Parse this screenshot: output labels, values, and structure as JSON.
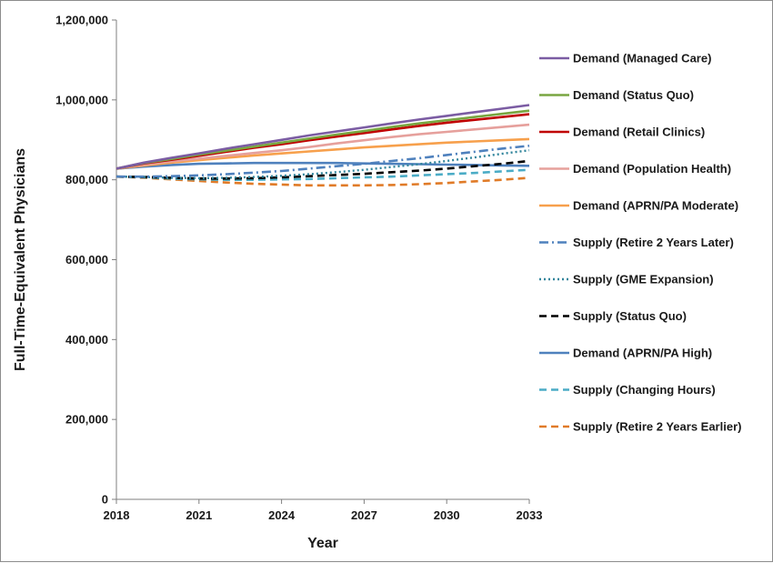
{
  "chart_data": {
    "type": "line",
    "title": "",
    "xlabel": "Year",
    "ylabel": "Full-Time-Equivalent Physicians",
    "xlim": [
      2018,
      2033
    ],
    "ylim": [
      0,
      1200000
    ],
    "x_ticks": [
      2018,
      2021,
      2024,
      2027,
      2030,
      2033
    ],
    "x_tick_labels": [
      "2018",
      "2021",
      "2024",
      "2027",
      "2030",
      "2033"
    ],
    "y_ticks": [
      0,
      200000,
      400000,
      600000,
      800000,
      1000000,
      1200000
    ],
    "y_tick_labels": [
      "0",
      "200,000",
      "400,000",
      "600,000",
      "800,000",
      "1,000,000",
      "1,200,000"
    ],
    "grid": false,
    "legend_position": "right",
    "x": [
      2018,
      2019,
      2020,
      2021,
      2022,
      2023,
      2024,
      2025,
      2026,
      2027,
      2028,
      2029,
      2030,
      2031,
      2032,
      2033
    ],
    "series": [
      {
        "name": "Demand (Managed Care)",
        "color": "#7b5ca3",
        "dash": "solid",
        "values": [
          828000,
          843000,
          855000,
          866000,
          878000,
          889000,
          900000,
          911000,
          921000,
          931000,
          941000,
          951000,
          960000,
          969000,
          978000,
          987000
        ]
      },
      {
        "name": "Demand (Status Quo)",
        "color": "#78a640",
        "dash": "solid",
        "values": [
          828000,
          842000,
          852000,
          863000,
          873000,
          883000,
          893000,
          903000,
          913000,
          922000,
          932000,
          941000,
          949000,
          957000,
          965000,
          973000
        ]
      },
      {
        "name": "Demand (Retail Clinics)",
        "color": "#c00000",
        "dash": "solid",
        "values": [
          828000,
          841000,
          850000,
          860000,
          870000,
          880000,
          889000,
          899000,
          908000,
          917000,
          926000,
          935000,
          943000,
          950000,
          957000,
          964000
        ]
      },
      {
        "name": "Demand (Population Health)",
        "color": "#e6a09c",
        "dash": "solid",
        "values": [
          828000,
          838000,
          846000,
          853000,
          860000,
          867000,
          874000,
          882000,
          891000,
          899000,
          907000,
          914000,
          920000,
          926000,
          932000,
          938000
        ]
      },
      {
        "name": "Demand (APRN/PA Moderate)",
        "color": "#f7a04c",
        "dash": "solid",
        "values": [
          828000,
          836000,
          843000,
          849000,
          855000,
          861000,
          866000,
          871000,
          876000,
          881000,
          885000,
          889000,
          893000,
          896000,
          899000,
          902000
        ]
      },
      {
        "name": "Supply (Retire 2 Years Later)",
        "color": "#4f81bd",
        "dash": "dashdot",
        "values": [
          808000,
          808000,
          809000,
          811000,
          814000,
          818000,
          822000,
          828000,
          834000,
          840000,
          847000,
          854000,
          862000,
          870000,
          878000,
          885000
        ]
      },
      {
        "name": "Supply (GME Expansion)",
        "color": "#31859c",
        "dash": "dotted",
        "values": [
          808000,
          807000,
          805000,
          804000,
          805000,
          807000,
          810000,
          814000,
          819000,
          825000,
          832000,
          839000,
          847000,
          856000,
          865000,
          874000
        ]
      },
      {
        "name": "Supply (Status Quo)",
        "color": "#000000",
        "dash": "dashed",
        "values": [
          808000,
          807000,
          805000,
          803000,
          803000,
          804000,
          806000,
          809000,
          812000,
          815000,
          819000,
          823000,
          828000,
          834000,
          840000,
          847000
        ]
      },
      {
        "name": "Demand (APRN/PA High)",
        "color": "#4f81bd",
        "dash": "solid",
        "values": [
          828000,
          833000,
          837000,
          840000,
          841000,
          842000,
          842000,
          842000,
          842000,
          841000,
          840000,
          839000,
          838000,
          837000,
          836000,
          835000
        ]
      },
      {
        "name": "Supply (Changing Hours)",
        "color": "#4bacc6",
        "dash": "dashed",
        "values": [
          808000,
          806000,
          803000,
          801000,
          800000,
          800000,
          801000,
          802000,
          804000,
          806000,
          808000,
          811000,
          814000,
          817000,
          821000,
          825000
        ]
      },
      {
        "name": "Supply (Retire 2 Years Earlier)",
        "color": "#e07b28",
        "dash": "dashed",
        "values": [
          808000,
          805000,
          801000,
          797000,
          793000,
          790000,
          788000,
          786000,
          786000,
          786000,
          787000,
          789000,
          792000,
          796000,
          800000,
          805000
        ]
      }
    ]
  }
}
